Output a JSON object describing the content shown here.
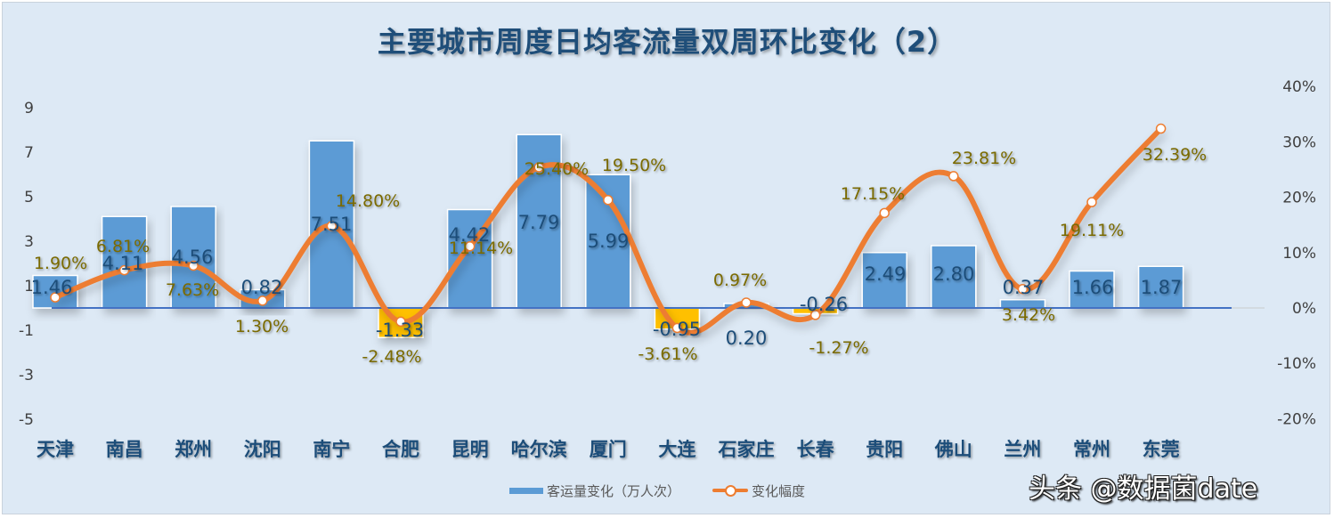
{
  "chart_data": {
    "type": "bar+line",
    "title": "主要城市周度日均客流量双周环比变化（2）",
    "categories": [
      "天津",
      "南昌",
      "郑州",
      "沈阳",
      "南宁",
      "合肥",
      "昆明",
      "哈尔滨",
      "厦门",
      "大连",
      "石家庄",
      "长春",
      "贵阳",
      "佛山",
      "兰州",
      "常州",
      "东莞"
    ],
    "series": [
      {
        "name": "客运量变化（万人次）",
        "type": "bar",
        "axis": "left",
        "color": "#5b9bd5",
        "negative_color": "#ffc000",
        "values": [
          1.46,
          4.11,
          4.56,
          0.82,
          7.51,
          -1.33,
          4.42,
          7.79,
          5.99,
          -0.95,
          0.2,
          -0.26,
          2.49,
          2.8,
          0.37,
          1.66,
          1.87
        ],
        "labels": [
          "1.46",
          "4.11",
          "4.56",
          "0.82",
          "7.51",
          "-1.33",
          "4.42",
          "7.79",
          "5.99",
          "-0.95",
          "0.20",
          "-0.26",
          "2.49",
          "2.80",
          "0.37",
          "1.66",
          "1.87"
        ]
      },
      {
        "name": "变化幅度",
        "type": "line",
        "axis": "right",
        "color": "#ed7d31",
        "values": [
          1.9,
          6.81,
          7.63,
          1.3,
          14.8,
          -2.48,
          11.14,
          25.4,
          19.5,
          -3.61,
          0.97,
          -1.27,
          17.15,
          23.81,
          3.42,
          19.11,
          32.39
        ],
        "labels": [
          "1.90%",
          "6.81%",
          "7.63%",
          "1.30%",
          "14.80%",
          "-2.48%",
          "11.14%",
          "25.40%",
          "19.50%",
          "-3.61%",
          "0.97%",
          "-1.27%",
          "17.15%",
          "23.81%",
          "3.42%",
          "19.11%",
          "32.39%"
        ]
      }
    ],
    "left_axis": {
      "ticks": [
        "9",
        "7",
        "5",
        "3",
        "1",
        "-1",
        "-3",
        "-5"
      ],
      "range": [
        -5,
        9
      ]
    },
    "right_axis": {
      "ticks": [
        "40%",
        "30%",
        "20%",
        "10%",
        "0%",
        "-10%",
        "-20%"
      ],
      "range": [
        -20,
        40
      ]
    },
    "legend_position": "bottom",
    "grid": false
  },
  "legend": {
    "bar_label": "客运量变化（万人次）",
    "line_label": "变化幅度"
  },
  "watermark": "头条 @数据菌date"
}
